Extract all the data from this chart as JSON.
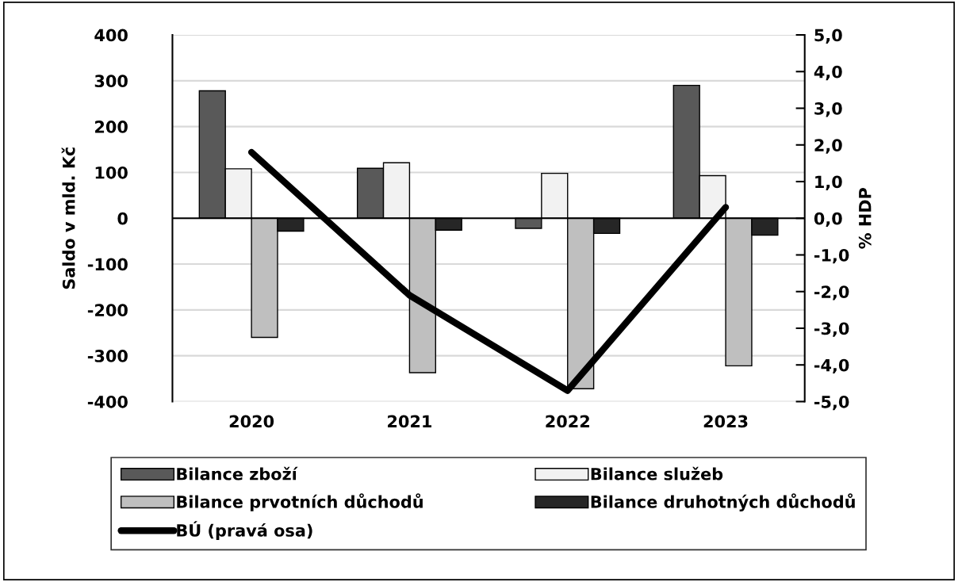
{
  "chart_data": {
    "type": "bar",
    "categories": [
      "2020",
      "2021",
      "2022",
      "2023"
    ],
    "ylabel": "Saldo v mld. Kč",
    "y2label": "% HDP",
    "series": [
      {
        "name": "Bilance zboží",
        "color": "#595959",
        "values": [
          278,
          109,
          -22,
          290
        ]
      },
      {
        "name": "Bilance služeb",
        "color": "#f2f2f2",
        "values": [
          108,
          121,
          98,
          93
        ]
      },
      {
        "name": "Bilance prvotních důchodů",
        "color": "#bfbfbf",
        "values": [
          -260,
          -337,
          -372,
          -322
        ]
      },
      {
        "name": "Bilance druhotných důchodů",
        "color": "#262626",
        "values": [
          -28,
          -26,
          -33,
          -37
        ]
      },
      {
        "name": "BÚ (pravá osa)",
        "type": "line",
        "axis": "y2",
        "color": "#000000",
        "values": [
          1.8,
          -2.1,
          -4.7,
          0.3
        ]
      }
    ],
    "ylim": [
      -400,
      400
    ],
    "yticks": [
      -400,
      -300,
      -200,
      -100,
      0,
      100,
      200,
      300,
      400
    ],
    "y2lim": [
      -5,
      5
    ],
    "y2ticks": [
      {
        "value": -5,
        "label": "-5,0"
      },
      {
        "value": -4,
        "label": "-4,0"
      },
      {
        "value": -3,
        "label": "-3,0"
      },
      {
        "value": -2,
        "label": "-2,0"
      },
      {
        "value": -1,
        "label": "-1,0"
      },
      {
        "value": 0,
        "label": "0,0"
      },
      {
        "value": 1,
        "label": "1,0"
      },
      {
        "value": 2,
        "label": "2,0"
      },
      {
        "value": 3,
        "label": "3,0"
      },
      {
        "value": 4,
        "label": "4,0"
      },
      {
        "value": 5,
        "label": "5,0"
      }
    ],
    "grid": "y",
    "legend": "bottom",
    "marker": "none",
    "line_style": "solid"
  }
}
